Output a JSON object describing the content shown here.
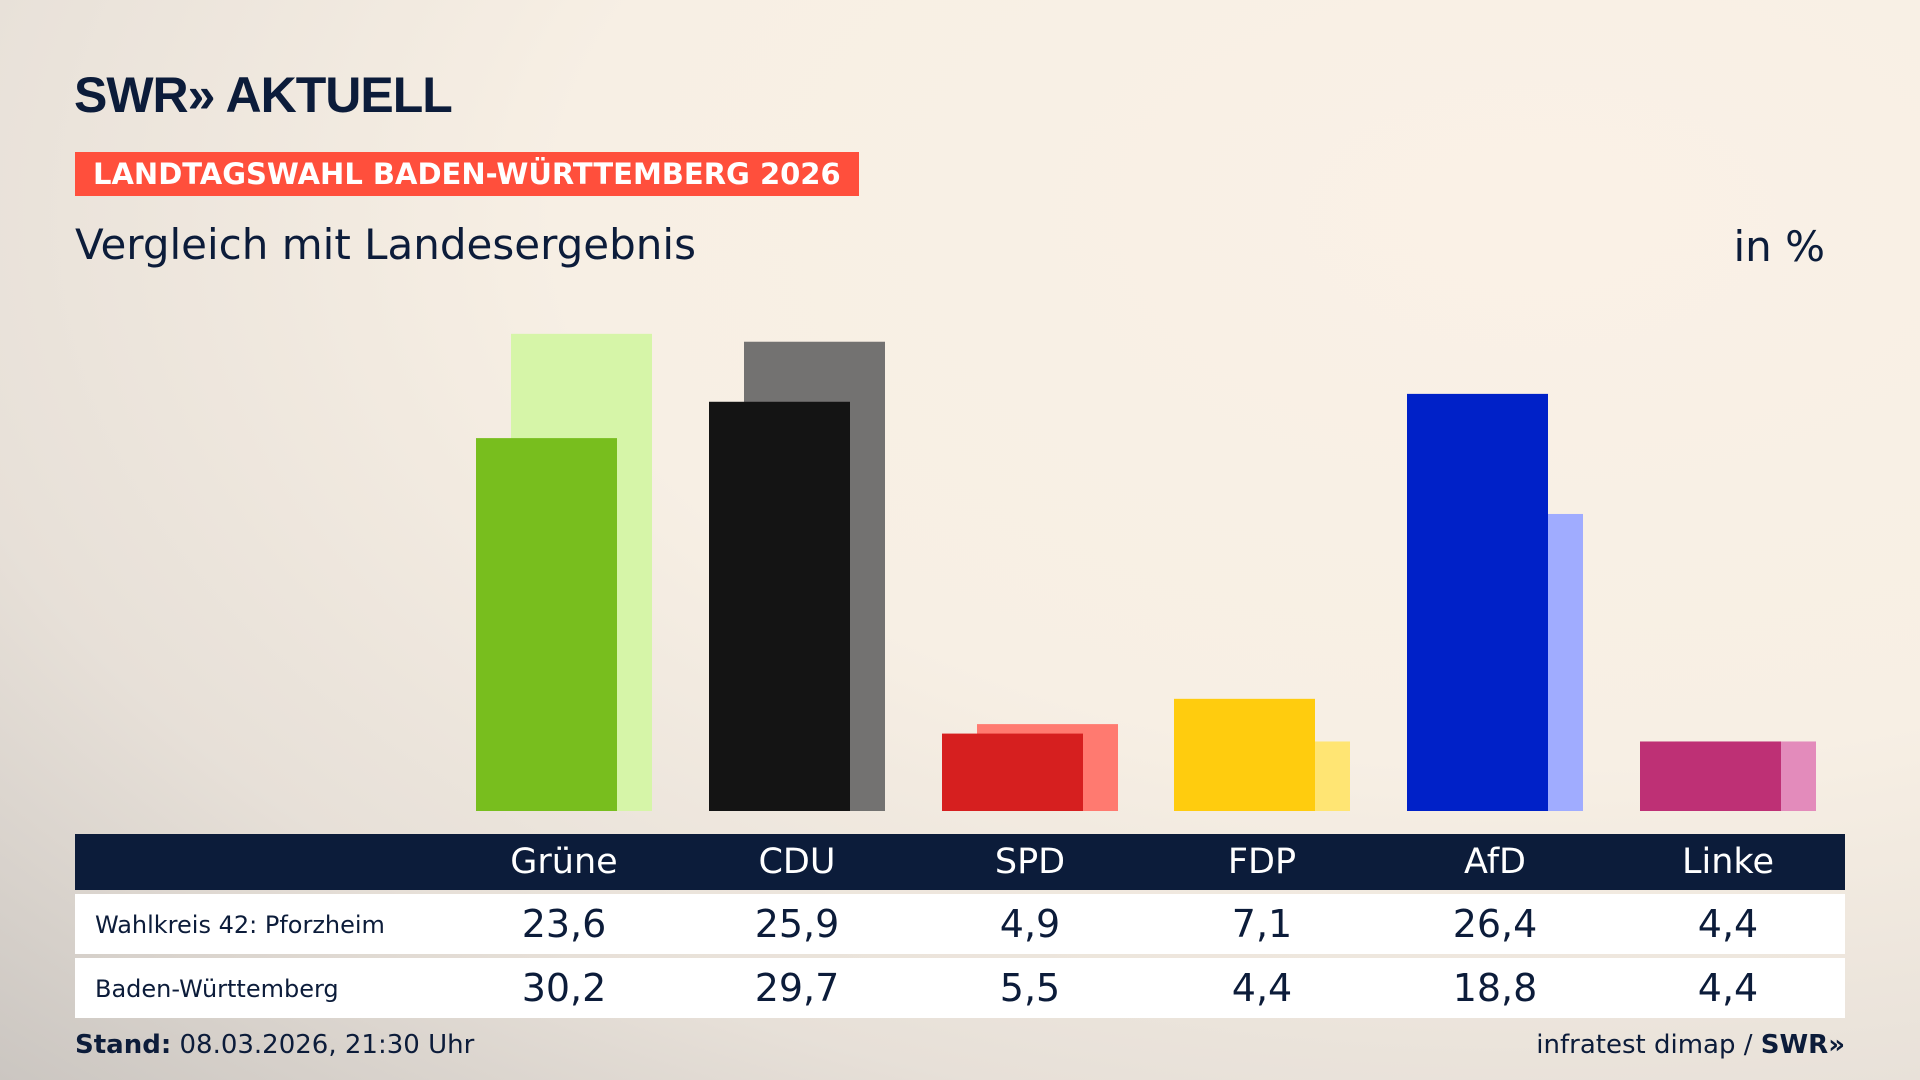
{
  "header": {
    "logo": "SWR» AKTUELL",
    "banner": "LANDTAGSWAHL BADEN-WÜRTTEMBERG 2026",
    "subtitle": "Vergleich mit Landesergebnis",
    "unit": "in %"
  },
  "chart_data": {
    "type": "bar",
    "categories": [
      "Grüne",
      "CDU",
      "SPD",
      "FDP",
      "AfD",
      "Linke"
    ],
    "series": [
      {
        "name": "Wahlkreis 42: Pforzheim",
        "values": [
          23.6,
          25.9,
          4.9,
          7.1,
          26.4,
          4.4
        ],
        "colors": [
          "#78be1e",
          "#141414",
          "#d61f1f",
          "#ffcc0e",
          "#0021c8",
          "#be3075"
        ]
      },
      {
        "name": "Baden-Württemberg",
        "values": [
          30.2,
          29.7,
          5.5,
          4.4,
          18.8,
          4.4
        ],
        "colors": [
          "#d6f5a8",
          "#737271",
          "#ff7a70",
          "#ffe573",
          "#a0acff",
          "#e38bbb"
        ]
      }
    ],
    "ylim": [
      0,
      30.2
    ]
  },
  "table": {
    "headers": [
      "Grüne",
      "CDU",
      "SPD",
      "FDP",
      "AfD",
      "Linke"
    ],
    "rows": [
      {
        "label": "Wahlkreis 42: Pforzheim",
        "values": [
          "23,6",
          "25,9",
          "4,9",
          "7,1",
          "26,4",
          "4,4"
        ]
      },
      {
        "label": "Baden-Württemberg",
        "values": [
          "30,2",
          "29,7",
          "5,5",
          "4,4",
          "18,8",
          "4,4"
        ]
      }
    ]
  },
  "footer": {
    "stand_label": "Stand:",
    "stand_value": "08.03.2026, 21:30 Uhr",
    "source": "infratest dimap /",
    "source_logo": "SWR»"
  }
}
